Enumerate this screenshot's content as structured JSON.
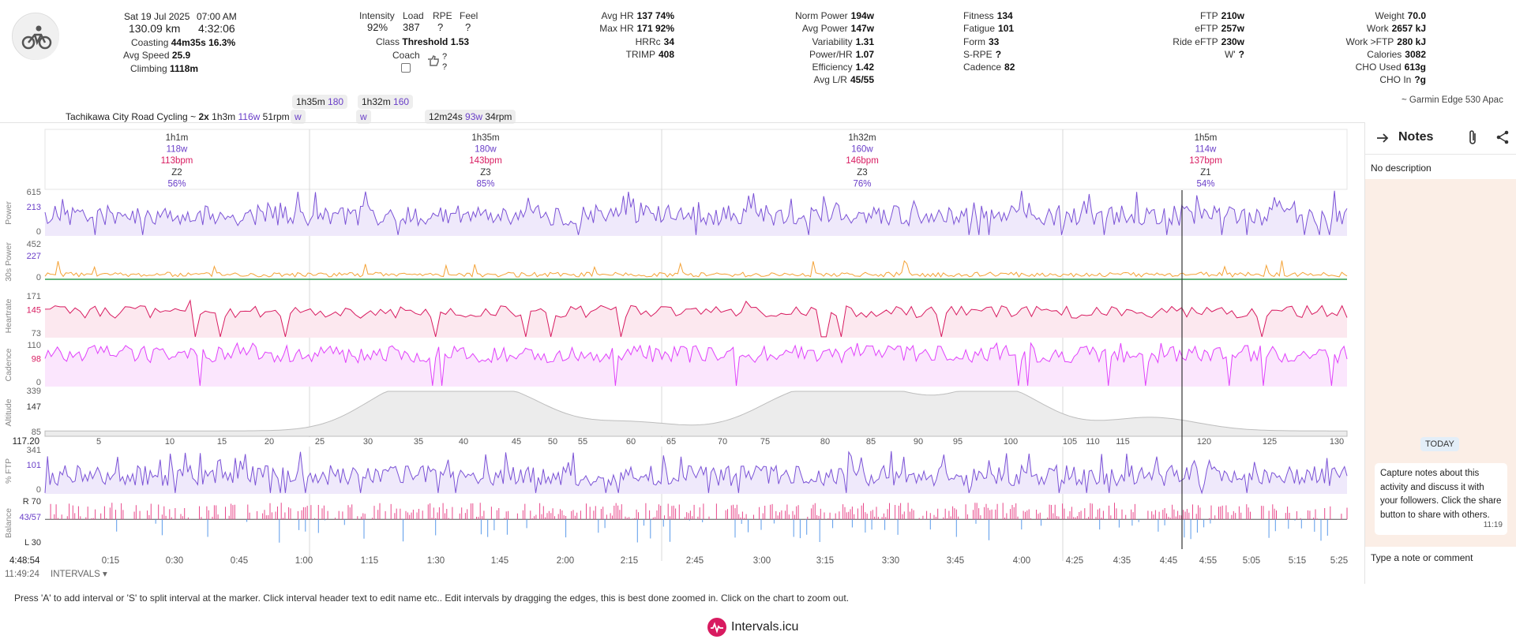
{
  "summary": {
    "date": "Sat 19 Jul 2025",
    "time": "07:00 AM",
    "distance": "130.09 km",
    "duration": "4:32:06",
    "coasting_label": "Coasting",
    "coasting_value": "44m35s 16.3%",
    "avg_speed_label": "Avg Speed",
    "avg_speed_value": "25.9",
    "climbing_label": "Climbing",
    "climbing_value": "1118m"
  },
  "load_block": {
    "intensity_label": "Intensity",
    "intensity_value": "92%",
    "load_label": "Load",
    "load_value": "387",
    "rpe_label": "RPE",
    "rpe_value": "?",
    "feel_label": "Feel",
    "feel_value": "?",
    "class_label": "Class",
    "class_value": "Threshold",
    "class_num": "1.53",
    "coach_label": "Coach",
    "q1": "?",
    "q2": "?"
  },
  "hr_block": [
    {
      "k": "Avg HR",
      "v": "137 74%"
    },
    {
      "k": "Max HR",
      "v": "171 92%"
    },
    {
      "k": "HRRc",
      "v": "34"
    },
    {
      "k": "TRIMP",
      "v": "408"
    }
  ],
  "power_block": [
    {
      "k": "Norm Power",
      "v": "194w"
    },
    {
      "k": "Avg Power",
      "v": "147w"
    },
    {
      "k": "Variability",
      "v": "1.31"
    },
    {
      "k": "Power/HR",
      "v": "1.07"
    },
    {
      "k": "Efficiency",
      "v": "1.42"
    },
    {
      "k": "Avg L/R",
      "v": "45/55"
    }
  ],
  "fitness_block": [
    {
      "k": "Fitness",
      "v": "134"
    },
    {
      "k": "Fatigue",
      "v": "101"
    },
    {
      "k": "Form",
      "v": "33"
    },
    {
      "k": "S-RPE",
      "v": "?"
    },
    {
      "k": "Cadence",
      "v": "82"
    }
  ],
  "ftp_block": [
    {
      "k": "FTP",
      "v": "210w"
    },
    {
      "k": "eFTP",
      "v": "257w"
    },
    {
      "k": "Ride eFTP",
      "v": "230w"
    },
    {
      "k": "W'",
      "v": "?"
    }
  ],
  "weight_block": [
    {
      "k": "Weight",
      "v": "70.0"
    },
    {
      "k": "Work",
      "v": "2657 kJ"
    },
    {
      "k": "Work >FTP",
      "v": "280 kJ"
    },
    {
      "k": "Calories",
      "v": "3082"
    },
    {
      "k": "CHO Used",
      "v": "613g"
    },
    {
      "k": "CHO In",
      "v": "?g"
    }
  ],
  "device": "~ Garmin Edge 530 Apac",
  "activity_name": "Tachikawa City Road Cycling",
  "tilde": "~",
  "reps": "2x",
  "rep_time": "1h3m",
  "rep_power": "116w",
  "rep_cad": "51rpm",
  "pill1_time": "1h35m",
  "pill1_power": "180",
  "pill2_time": "1h32m",
  "pill2_power": "160",
  "pill_w": "w",
  "pill3_time": "12m24s",
  "pill3_power": "93w",
  "pill3_cad": "34rpm",
  "segments": [
    {
      "dur": "1h1m",
      "power": "118w",
      "hr": "113bpm",
      "zone": "Z2",
      "pct": "56%"
    },
    {
      "dur": "1h35m",
      "power": "180w",
      "hr": "143bpm",
      "zone": "Z3",
      "pct": "85%"
    },
    {
      "dur": "1h32m",
      "power": "160w",
      "hr": "146bpm",
      "zone": "Z3",
      "pct": "76%"
    },
    {
      "dur": "1h5m",
      "power": "114w",
      "hr": "137bpm",
      "zone": "Z1",
      "pct": "54%"
    }
  ],
  "tracks": [
    {
      "name": "Power",
      "ticks": [
        "615",
        "213",
        "0"
      ]
    },
    {
      "name": "30s Power",
      "ticks": [
        "452",
        "227",
        "0"
      ]
    },
    {
      "name": "Heartrate",
      "ticks": [
        "171",
        "145",
        "73"
      ]
    },
    {
      "name": "Cadence",
      "ticks": [
        "110",
        "98",
        "0"
      ]
    },
    {
      "name": "Altitude",
      "ticks": [
        "339",
        "147",
        "85"
      ]
    },
    {
      "name": "% FTP",
      "ticks": [
        "341",
        "101",
        "0"
      ]
    },
    {
      "name": "Balance",
      "ticks": [
        "R 70",
        "43/57",
        "L 30"
      ]
    }
  ],
  "dist_marker": "117.20",
  "dist_ticks": [
    "5",
    "10",
    "15",
    "20",
    "25",
    "30",
    "35",
    "40",
    "45",
    "50",
    "55",
    "60",
    "65",
    "70",
    "75",
    "80",
    "85",
    "90",
    "95",
    "100",
    "105",
    "110",
    "115",
    "120",
    "125",
    "130"
  ],
  "time_ticks": [
    "0:15",
    "0:30",
    "0:45",
    "1:00",
    "1:15",
    "1:30",
    "1:45",
    "2:00",
    "2:15",
    "2:45",
    "3:00",
    "3:15",
    "3:30",
    "3:45",
    "4:00",
    "4:25",
    "4:35",
    "4:45",
    "4:55",
    "5:05",
    "5:15",
    "5:25"
  ],
  "cursor_time": "4:48:54",
  "cursor_clock": "11:49:24",
  "intervals_label": "INTERVALS",
  "help_text": "Press 'A' to add interval or 'S' to split interval at the marker. Click interval header text to edit name etc.. Edit intervals by dragging the edges, this is best done zoomed in. Click on the chart to zoom out.",
  "brand": "Intervals.icu",
  "notes": {
    "title": "Notes",
    "description": "No description",
    "today": "TODAY",
    "bubble": "Capture notes about this activity and discuss it with your followers. Click the share button to share with others.",
    "bubble_time": "11:19",
    "placeholder": "Type a note or comment"
  },
  "colors": {
    "power": "#7b52d6",
    "hr": "#d81b60",
    "cadence": "#e040fb",
    "altitude": "#bdbdbd",
    "accent": "#6a3fc8"
  }
}
